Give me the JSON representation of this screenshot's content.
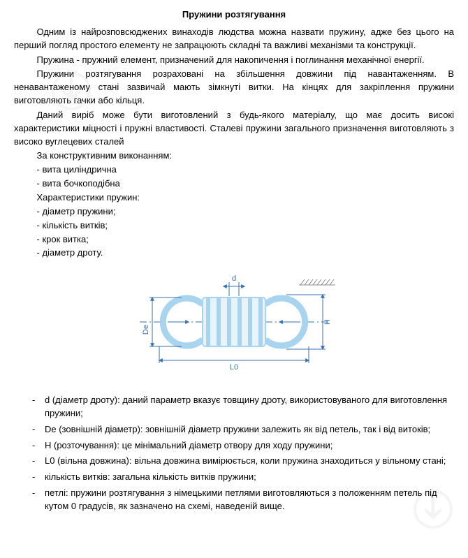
{
  "title": "Пружини розтягування",
  "paragraphs": [
    "Одним із найрозповсюджених винаходів людства можна назвати пружину, адже без цього на перший погляд простого елементу не запрацюють складні та важливі механізми та конструкції.",
    "Пружина - пружний елемент, призначений для накопичення і поглинання механічної енергії.",
    "Пружини розтягування розраховані на збільшення довжини під навантаженням. В ненавантаженому стані зазвичай мають зімкнуті витки. На кінцях для закріплення пружини виготовляють гачки або кільця.",
    "Даний виріб може бути виготовлений з будь-якого матеріалу, що має досить високі характеристики міцності і пружні властивості. Сталеві пружини загального призначення виготовляють з високо вуглецевих сталей"
  ],
  "list_heading_1": "За конструктивним виконанням:",
  "constructive_list": [
    "- вита циліндрична",
    "- вита бочкоподібна"
  ],
  "list_heading_2": "Характеристики пружин:",
  "chars_list": [
    "- діаметр пружини;",
    "- кількість витків;",
    "- крок витка;",
    "- діаметр дроту."
  ],
  "diagram": {
    "label_d": "d",
    "label_De": "De",
    "label_H": "H",
    "label_L0": "L0",
    "colors": {
      "spring_stroke": "#a8d4f0",
      "spring_fill_light": "#e8f3fb",
      "dim_line": "#3870b0",
      "dim_text": "#3870b0",
      "hatch": "#888888",
      "centerline": "#3870b0"
    }
  },
  "definitions": [
    "d (діаметр дроту): даний параметр вказує товщину дроту, використовуваного для виготовлення пружини;",
    "De (зовнішній діаметр): зовнішній діаметр пружини залежить як від петель, так і від витоків;",
    "H (розточування): це мінімальний діаметр отвору для ходу пружини;",
    "L0 (вільна довжина): вільна довжина вимірюється, коли пружина знаходиться у вільному стані;",
    "кількість витків: загальна кількість витків пружини;",
    "петлі: пружини розтягування з німецькими петлями виготовляються з положенням петель під кутом 0 градусів, як зазначено на схемі, наведеній вище."
  ],
  "watermark_color": "#b0b0b0"
}
